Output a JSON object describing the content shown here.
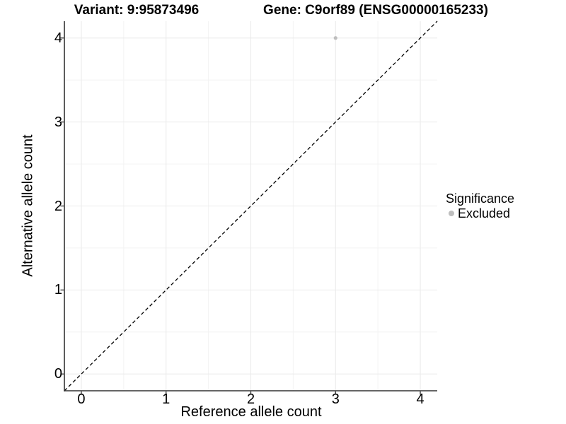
{
  "chart_data": {
    "type": "scatter",
    "titles": [
      "Variant: 9:95873496",
      "Gene: C9orf89 (ENSG00000165233)"
    ],
    "xlabel": "Reference allele count",
    "ylabel": "Alternative allele count",
    "xlim": [
      -0.2,
      4.2
    ],
    "ylim": [
      -0.2,
      4.2
    ],
    "x_ticks": [
      0,
      1,
      2,
      3,
      4
    ],
    "y_ticks": [
      0,
      1,
      2,
      3,
      4
    ],
    "minor_grid_step": 0.5,
    "grid": "major and minor, light gray on white panel",
    "points": [
      {
        "x": 3,
        "y": 4,
        "series": "Excluded"
      }
    ],
    "reference_line": {
      "kind": "identity y=x",
      "dash": true,
      "color": "#000000"
    },
    "legend": {
      "title": "Significance",
      "position": "right",
      "items": [
        {
          "label": "Excluded",
          "color": "#bebebe"
        }
      ]
    }
  },
  "colors": {
    "background": "#ffffff",
    "grid_major": "#ebebeb",
    "grid_minor": "#f4f4f4",
    "axis_line": "#333333",
    "tick_mark": "#333333",
    "text": "#000000",
    "point_excluded": "#bebebe"
  }
}
